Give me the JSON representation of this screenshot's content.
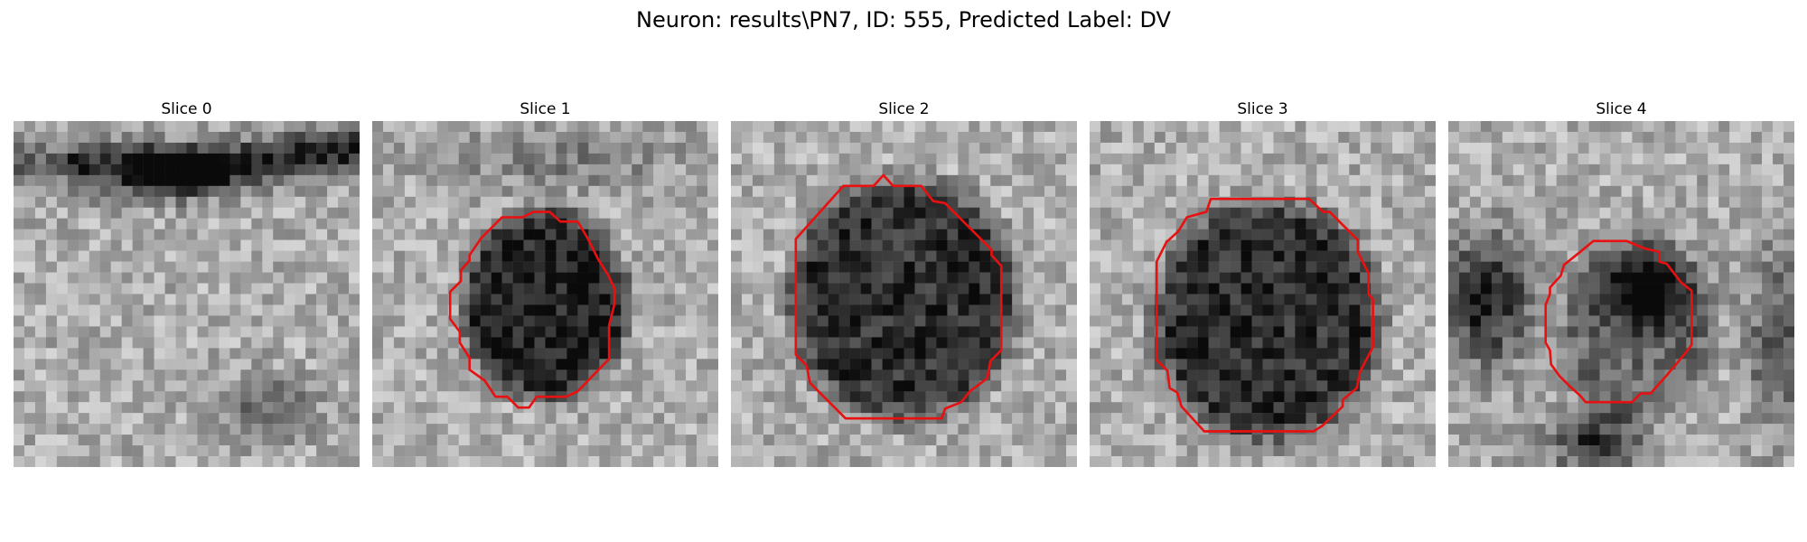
{
  "figure_title": "Neuron: results\\PN7, ID: 555, Predicted Label: DV",
  "panels": [
    {
      "title": "Slice 0",
      "has_contour": false
    },
    {
      "title": "Slice 1",
      "has_contour": true
    },
    {
      "title": "Slice 2",
      "has_contour": true
    },
    {
      "title": "Slice 3",
      "has_contour": true
    },
    {
      "title": "Slice 4",
      "has_contour": true
    }
  ],
  "colors": {
    "contour": "#e81010",
    "background": "#ffffff"
  },
  "colormap": "grayscale"
}
